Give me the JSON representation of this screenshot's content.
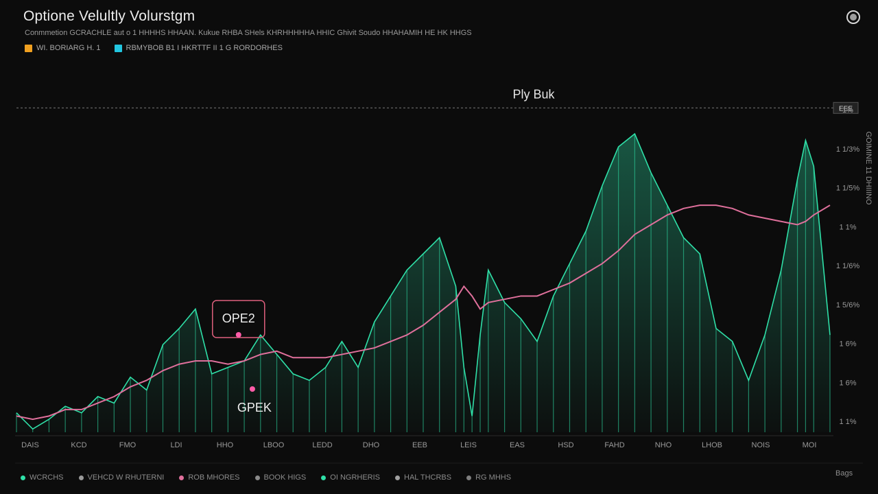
{
  "header": {
    "title": "Optione Velultly Volurstgm",
    "subtitle": "Conmmetion GCRACHLE aut o 1 HHHHS HHAAN. Kukue RHBA SHels KHRHHHHHA HHIC Ghivit Soudo HHAHAMIH HE HK HHGS",
    "legend": [
      {
        "label": "WI. BORIARG H. 1",
        "color": "#f0a020"
      },
      {
        "label": "RBMYBOB B1 I HKRTTF II 1 G RORDORHES",
        "color": "#22c6e0"
      }
    ],
    "corner_icon": "circle-button-icon"
  },
  "chart_data": {
    "type": "line",
    "title": "Optione Velultly Volurstgm",
    "subtitle": "Conmmetion GCRACHLE aut o 1 HHHHS HHAAN. Kukue RHBA SHels KHRHHHHHA HHIC Ghivit Soudo HHAHAMIH HE HK HHGS",
    "xlabel": "",
    "ylabel": "GOIMINE 11 DHIIINO",
    "x_tick_labels": [
      "DAIS",
      "KCD",
      "FMO",
      "LDI",
      "HHO",
      "LBOO",
      "LEDD",
      "DHO",
      "EEB",
      "LEIS",
      "EAS",
      "HSD",
      "FAHD",
      "NHO",
      "LHOB",
      "NOIS",
      "MOI"
    ],
    "y_tick_labels": [
      "1%",
      "1 1/3%",
      "1 1/5%",
      "1 1%",
      "1 1/6%",
      "1 5/6%",
      "1 6%",
      "1 6%",
      "1 1%"
    ],
    "grid": false,
    "legend_position": "top-left",
    "reference_line": {
      "label": "Ply Buk",
      "value": 100
    },
    "annotations": [
      {
        "label": "OPE2",
        "at_x": 27.3,
        "style": "boxed"
      },
      {
        "label": "GPEK",
        "at_x": 29.0,
        "style": "plain"
      }
    ],
    "right_badge": "EEE",
    "colors": {
      "volume": "#2fe0a8",
      "trend": "#e0709c",
      "marker": "#ff5ca8"
    },
    "x": [
      0,
      2,
      4,
      6,
      8,
      10,
      12,
      14,
      16,
      18,
      20,
      22,
      24,
      26,
      28,
      30,
      32,
      34,
      36,
      38,
      40,
      42,
      44,
      46,
      48,
      50,
      52,
      54,
      55,
      56,
      57,
      58,
      60,
      62,
      64,
      66,
      68,
      70,
      72,
      74,
      76,
      78,
      80,
      82,
      84,
      86,
      88,
      90,
      92,
      94,
      96,
      97,
      98,
      100
    ],
    "series": [
      {
        "values": [
          6,
          1,
          4,
          8,
          6,
          11,
          9,
          17,
          13,
          27,
          32,
          38,
          18,
          20,
          22,
          30,
          24,
          18,
          16,
          20,
          28,
          20,
          34,
          42,
          50,
          55,
          60,
          45,
          20,
          5,
          30,
          50,
          40,
          35,
          28,
          42,
          52,
          62,
          76,
          88,
          92,
          80,
          70,
          60,
          55,
          32,
          28,
          16,
          30,
          50,
          78,
          90,
          82,
          30
        ]
      },
      {
        "values": [
          5,
          4,
          5,
          7,
          7,
          9,
          11,
          14,
          16,
          19,
          21,
          22,
          22,
          21,
          22,
          24,
          25,
          23,
          23,
          23,
          24,
          25,
          26,
          28,
          30,
          33,
          37,
          41,
          45,
          42,
          38,
          40,
          41,
          42,
          42,
          44,
          46,
          49,
          52,
          56,
          61,
          64,
          67,
          69,
          70,
          70,
          69,
          67,
          66,
          65,
          64,
          65,
          67,
          70
        ]
      }
    ]
  },
  "footer": {
    "legend": [
      {
        "label": "WCRCHS",
        "color": "#2fe0a8"
      },
      {
        "label": "VEHCD W RHUTERNI",
        "color": "#9a9a9a"
      },
      {
        "label": "ROB MHORES",
        "color": "#e0709c"
      },
      {
        "label": "BOOK HIGS",
        "color": "#8a8a8a"
      },
      {
        "label": "OI NGRHERIS",
        "color": "#2fe0a8"
      },
      {
        "label": "HAL THCRBS",
        "color": "#a0a0a0"
      },
      {
        "label": "RG MHHS",
        "color": "#7e7e7e"
      }
    ],
    "right_label": "Bags"
  }
}
